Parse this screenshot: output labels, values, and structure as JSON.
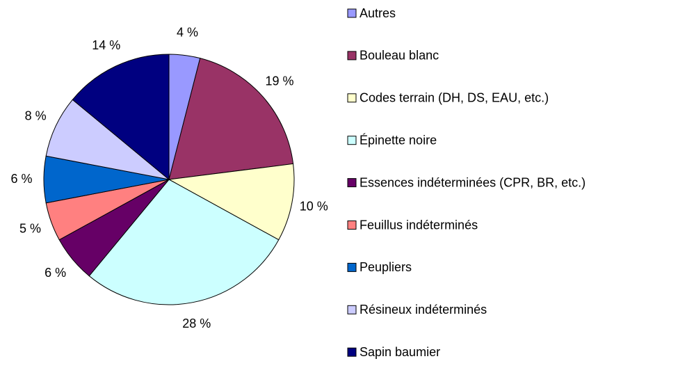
{
  "chart_data": {
    "type": "pie",
    "categories": [
      "Autres",
      "Bouleau blanc",
      "Codes terrain (DH, DS, EAU, etc.)",
      "Épinette noire",
      "Essences indéterminées (CPR, BR, etc.)",
      "Feuillus indéterminés",
      "Peupliers",
      "Résineux indéterminés",
      "Sapin baumier"
    ],
    "values": [
      4,
      19,
      10,
      28,
      6,
      5,
      6,
      8,
      14
    ],
    "value_labels": [
      "4 %",
      "19 %",
      "10 %",
      "28 %",
      "6 %",
      "5 %",
      "6 %",
      "8 %",
      "14 %"
    ],
    "colors": [
      "#9999ff",
      "#993366",
      "#ffffcc",
      "#ccffff",
      "#660066",
      "#ff8080",
      "#0066cc",
      "#ccccff",
      "#000080"
    ],
    "legend": "right"
  }
}
